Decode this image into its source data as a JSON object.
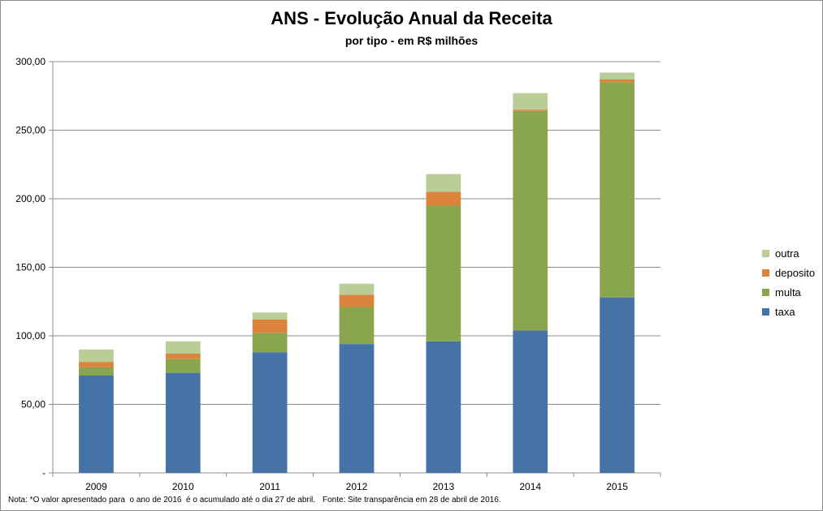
{
  "chart_data": {
    "type": "bar",
    "stacked": true,
    "title": "ANS - Evolução Anual da Receita",
    "subtitle": "por tipo - em R$ milhões",
    "categories": [
      "2009",
      "2010",
      "2011",
      "2012",
      "2013",
      "2014",
      "2015"
    ],
    "series": [
      {
        "name": "taxa",
        "color": "#4572a7",
        "values": [
          71,
          73,
          88,
          94,
          96,
          104,
          128
        ]
      },
      {
        "name": "multa",
        "color": "#89a54e",
        "values": [
          6,
          10,
          14,
          27,
          99,
          160,
          157
        ]
      },
      {
        "name": "deposito",
        "color": "#db843d",
        "values": [
          4,
          4,
          10,
          9,
          10,
          1,
          2
        ]
      },
      {
        "name": "outra",
        "color": "#b9cd96",
        "values": [
          9,
          9,
          5,
          8,
          13,
          12,
          5
        ]
      }
    ],
    "ylim": [
      0,
      300
    ],
    "yticks": [
      0,
      50,
      100,
      150,
      200,
      250,
      300
    ],
    "ytick_labels": [
      "-",
      "50,00",
      "100,00",
      "150,00",
      "200,00",
      "250,00",
      "300,00"
    ],
    "legend_order": [
      "outra",
      "deposito",
      "multa",
      "taxa"
    ],
    "legend_position": "right",
    "grid": true,
    "xlabel": "",
    "ylabel": ""
  },
  "footnote": "Nota: *O valor apresentado para  o ano de 2016  é o acumulado até o dia 27 de abril.",
  "source": "Fonte: Site transparência em 28 de abril de 2016."
}
